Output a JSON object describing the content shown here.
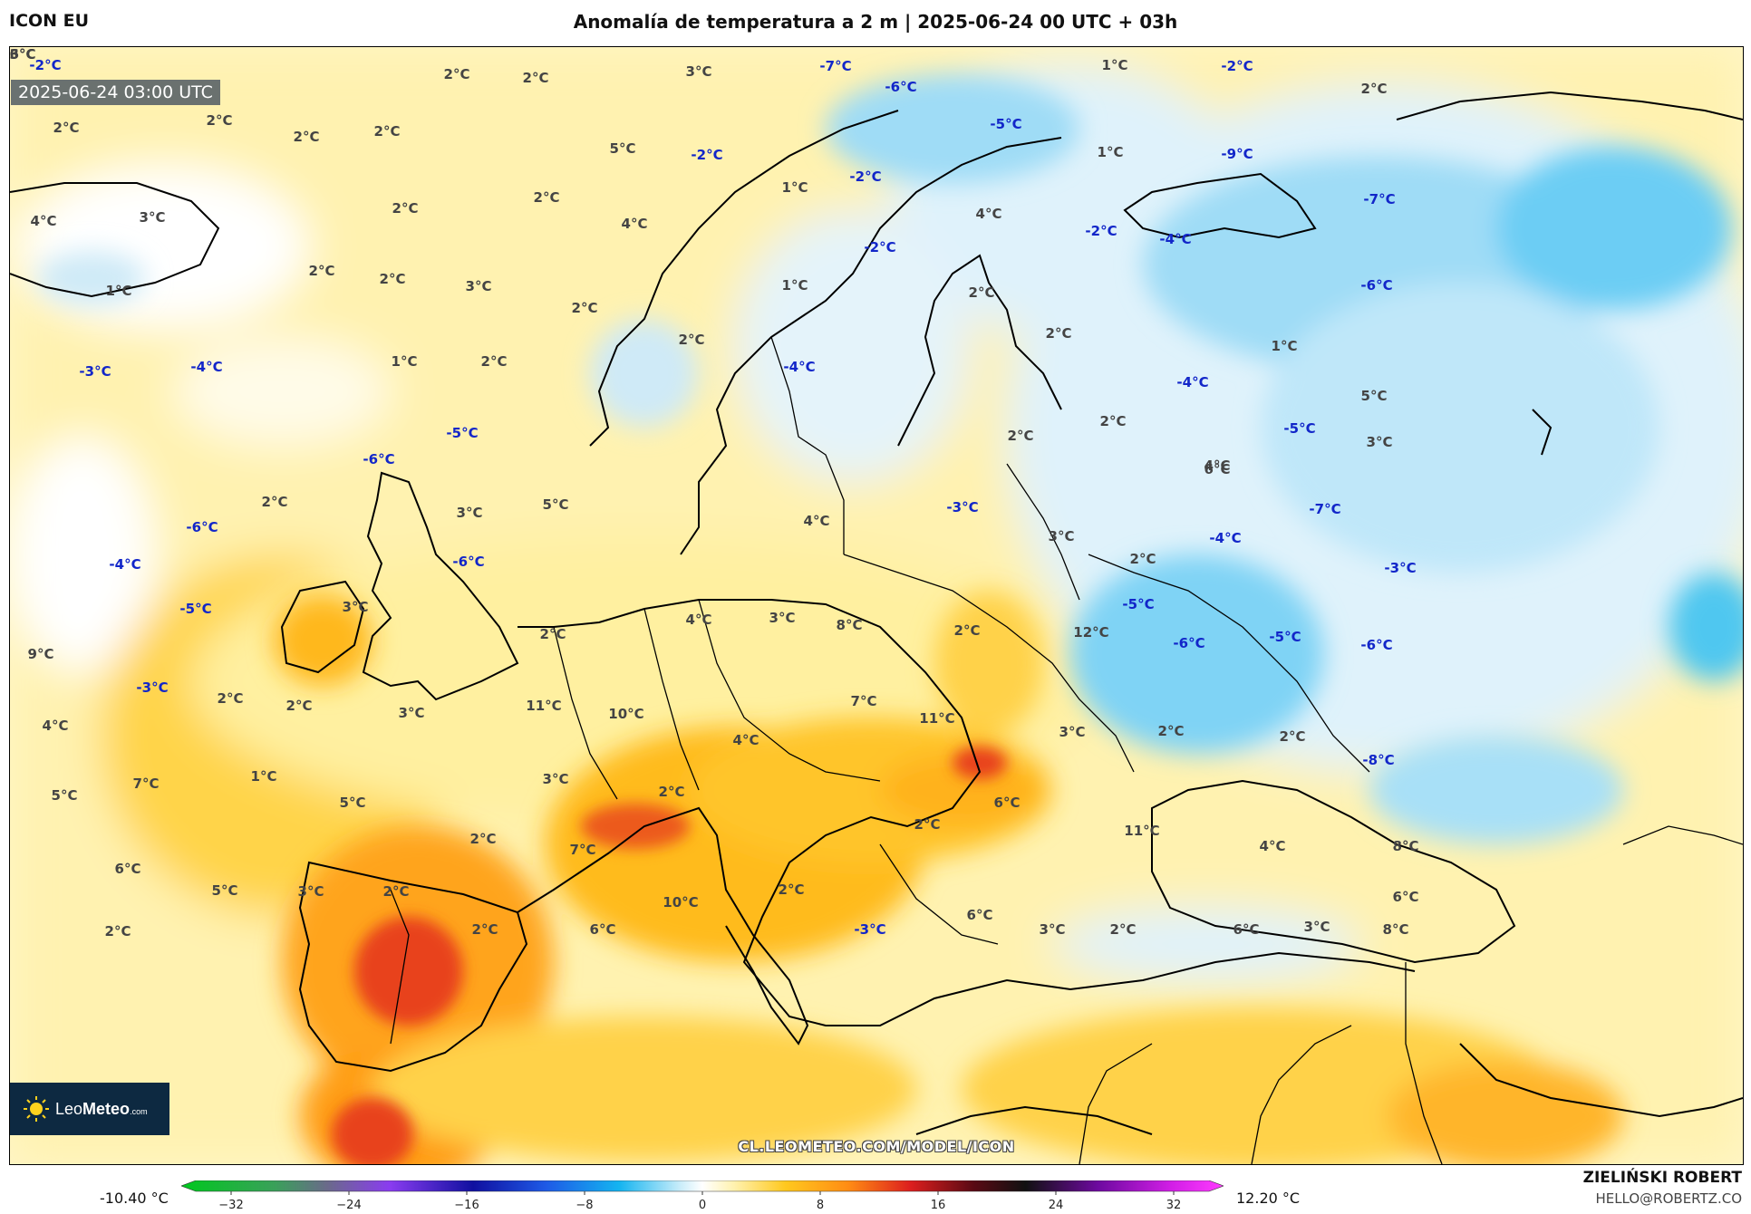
{
  "header": {
    "model": "ICON EU",
    "title": "Anomalía de temperatura a 2 m | 2025-06-24 00 UTC + 03h"
  },
  "map": {
    "valid_time": "2025-06-24 03:00 UTC",
    "logo": {
      "brand_light": "Leo",
      "brand_bold": "Meteo",
      "suffix": ".com"
    },
    "watermark": "CL.LEOMETEO.COM/MODEL/ICON",
    "labels": [
      "-2°C",
      "2°C",
      "2°C",
      "3°C",
      "-7°C",
      "-6°C",
      "1°C",
      "-2°C",
      "2°C",
      "2°C",
      "2°C",
      "2°C",
      "2°C",
      "5°C",
      "-2°C",
      "-5°C",
      "1°C",
      "-9°C",
      "4°C",
      "3°C",
      "2°C",
      "2°C",
      "4°C",
      "1°C",
      "-2°C",
      "4°C",
      "-2°C",
      "-4°C",
      "-7°C",
      "2°C",
      "2°C",
      "3°C",
      "1°C",
      "2°C",
      "-2°C",
      "-6°C",
      "1°C",
      "2°C",
      "2°C",
      "2°C",
      "1°C",
      "5°C",
      "-3°C",
      "-4°C",
      "1°C",
      "2°C",
      "2°C",
      "2°C",
      "-5°C",
      "-4°C",
      "3°C",
      "-5°C",
      "-4°C",
      "-6°C",
      "2°C",
      "5°C",
      "6°C",
      "3°C",
      "-3°C",
      "4°C",
      "-7°C",
      "4°C",
      "-6°C",
      "-6°C",
      "3°C",
      "3°C",
      "2°C",
      "-4°C",
      "-5°C",
      "-3°C",
      "-4°C",
      "-5°C",
      "4°C",
      "3°C",
      "8°C",
      "9°C",
      "2°C",
      "2°C",
      "12°C",
      "-6°C",
      "-5°C",
      "-6°C",
      "-3°C",
      "2°C",
      "2°C",
      "3°C",
      "11°C",
      "10°C",
      "7°C",
      "11°C",
      "3°C",
      "2°C",
      "2°C",
      "-8°C",
      "4°C",
      "4°C",
      "1°C",
      "7°C",
      "3°C",
      "2°C",
      "6°C",
      "2°C",
      "5°C",
      "5°C",
      "2°C",
      "11°C",
      "4°C",
      "8°C",
      "6°C",
      "7°C",
      "6°C",
      "5°C",
      "2°C",
      "3°C",
      "2°C",
      "10°C",
      "6°C",
      "2°C",
      "6°C",
      "2°C",
      "-3°C",
      "3°C",
      "2°C",
      "6°C",
      "3°C",
      "8°C",
      "6°C",
      "3°C"
    ]
  },
  "colorbar": {
    "min_label": "-10.40 °C",
    "max_label": "12.20 °C",
    "ticks": [
      "−32",
      "−24",
      "−16",
      "−8",
      "0",
      "8",
      "16",
      "24",
      "32"
    ]
  },
  "credits": {
    "author": "ZIELIŃSKI ROBERT",
    "email": "HELLO@ROBERTZ.CO"
  },
  "colors": {
    "warm_light": "#fff2b0",
    "warm": "#ffd21e",
    "hot": "#ff9900",
    "very_hot": "#e8431e",
    "cold_light": "#dff2fb",
    "cold": "#9fdcf6",
    "very_cold": "#4fc7f0",
    "logo_bg": "#0d2941"
  }
}
